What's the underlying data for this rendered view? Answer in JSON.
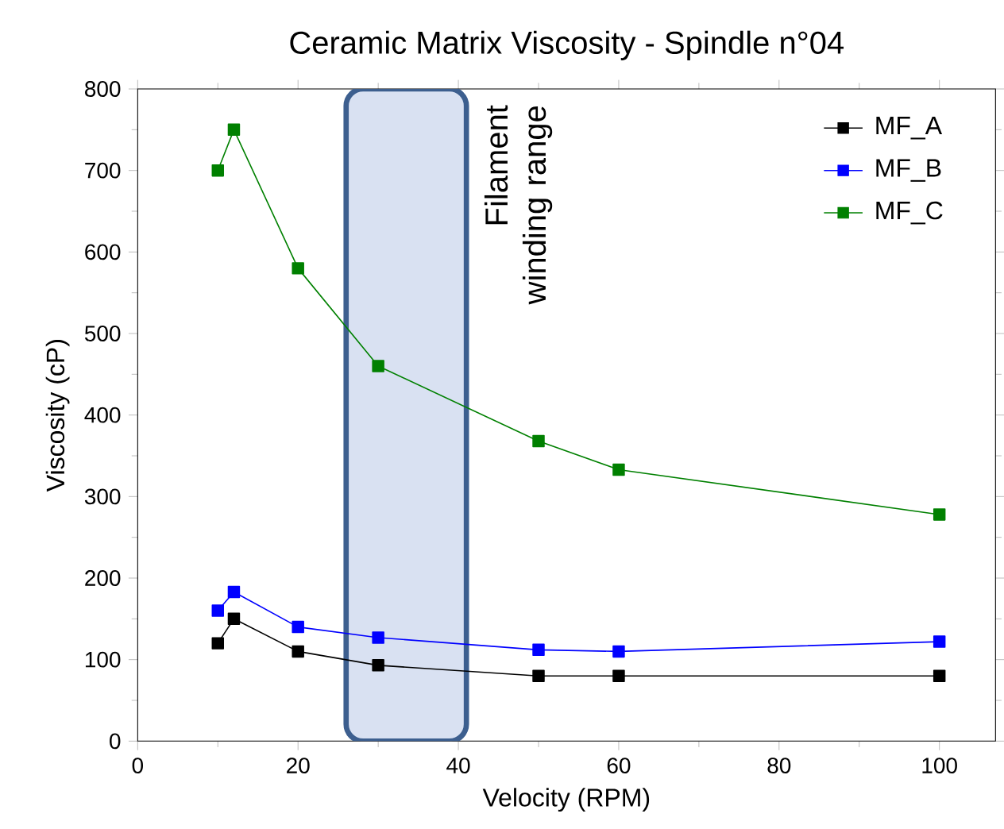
{
  "chart_data": {
    "type": "line",
    "title": "Ceramic Matrix Viscosity - Spindle n°04",
    "xlabel": "Velocity (RPM)",
    "ylabel": "Viscosity (cP)",
    "x": [
      10,
      12,
      20,
      30,
      50,
      60,
      100
    ],
    "series": [
      {
        "name": "MF_A",
        "color": "#000000",
        "values": [
          120,
          150,
          110,
          93,
          80,
          80,
          80
        ]
      },
      {
        "name": "MF_B",
        "color": "#0000ff",
        "values": [
          160,
          183,
          140,
          127,
          112,
          110,
          122
        ]
      },
      {
        "name": "MF_C",
        "color": "#008000",
        "values": [
          700,
          750,
          580,
          460,
          368,
          333,
          278
        ]
      }
    ],
    "xlim": [
      0,
      107
    ],
    "ylim": [
      0,
      800
    ],
    "xticks": [
      0,
      20,
      40,
      60,
      80,
      100
    ],
    "yticks": [
      0,
      100,
      200,
      300,
      400,
      500,
      600,
      700,
      800
    ],
    "bands": [
      {
        "axis": "x",
        "from": 26,
        "to": 41,
        "label": "Filament winding range",
        "color": "#d9e1f2"
      }
    ],
    "legend": "top right",
    "marker": "square",
    "line_style": "solid",
    "grid": false
  }
}
